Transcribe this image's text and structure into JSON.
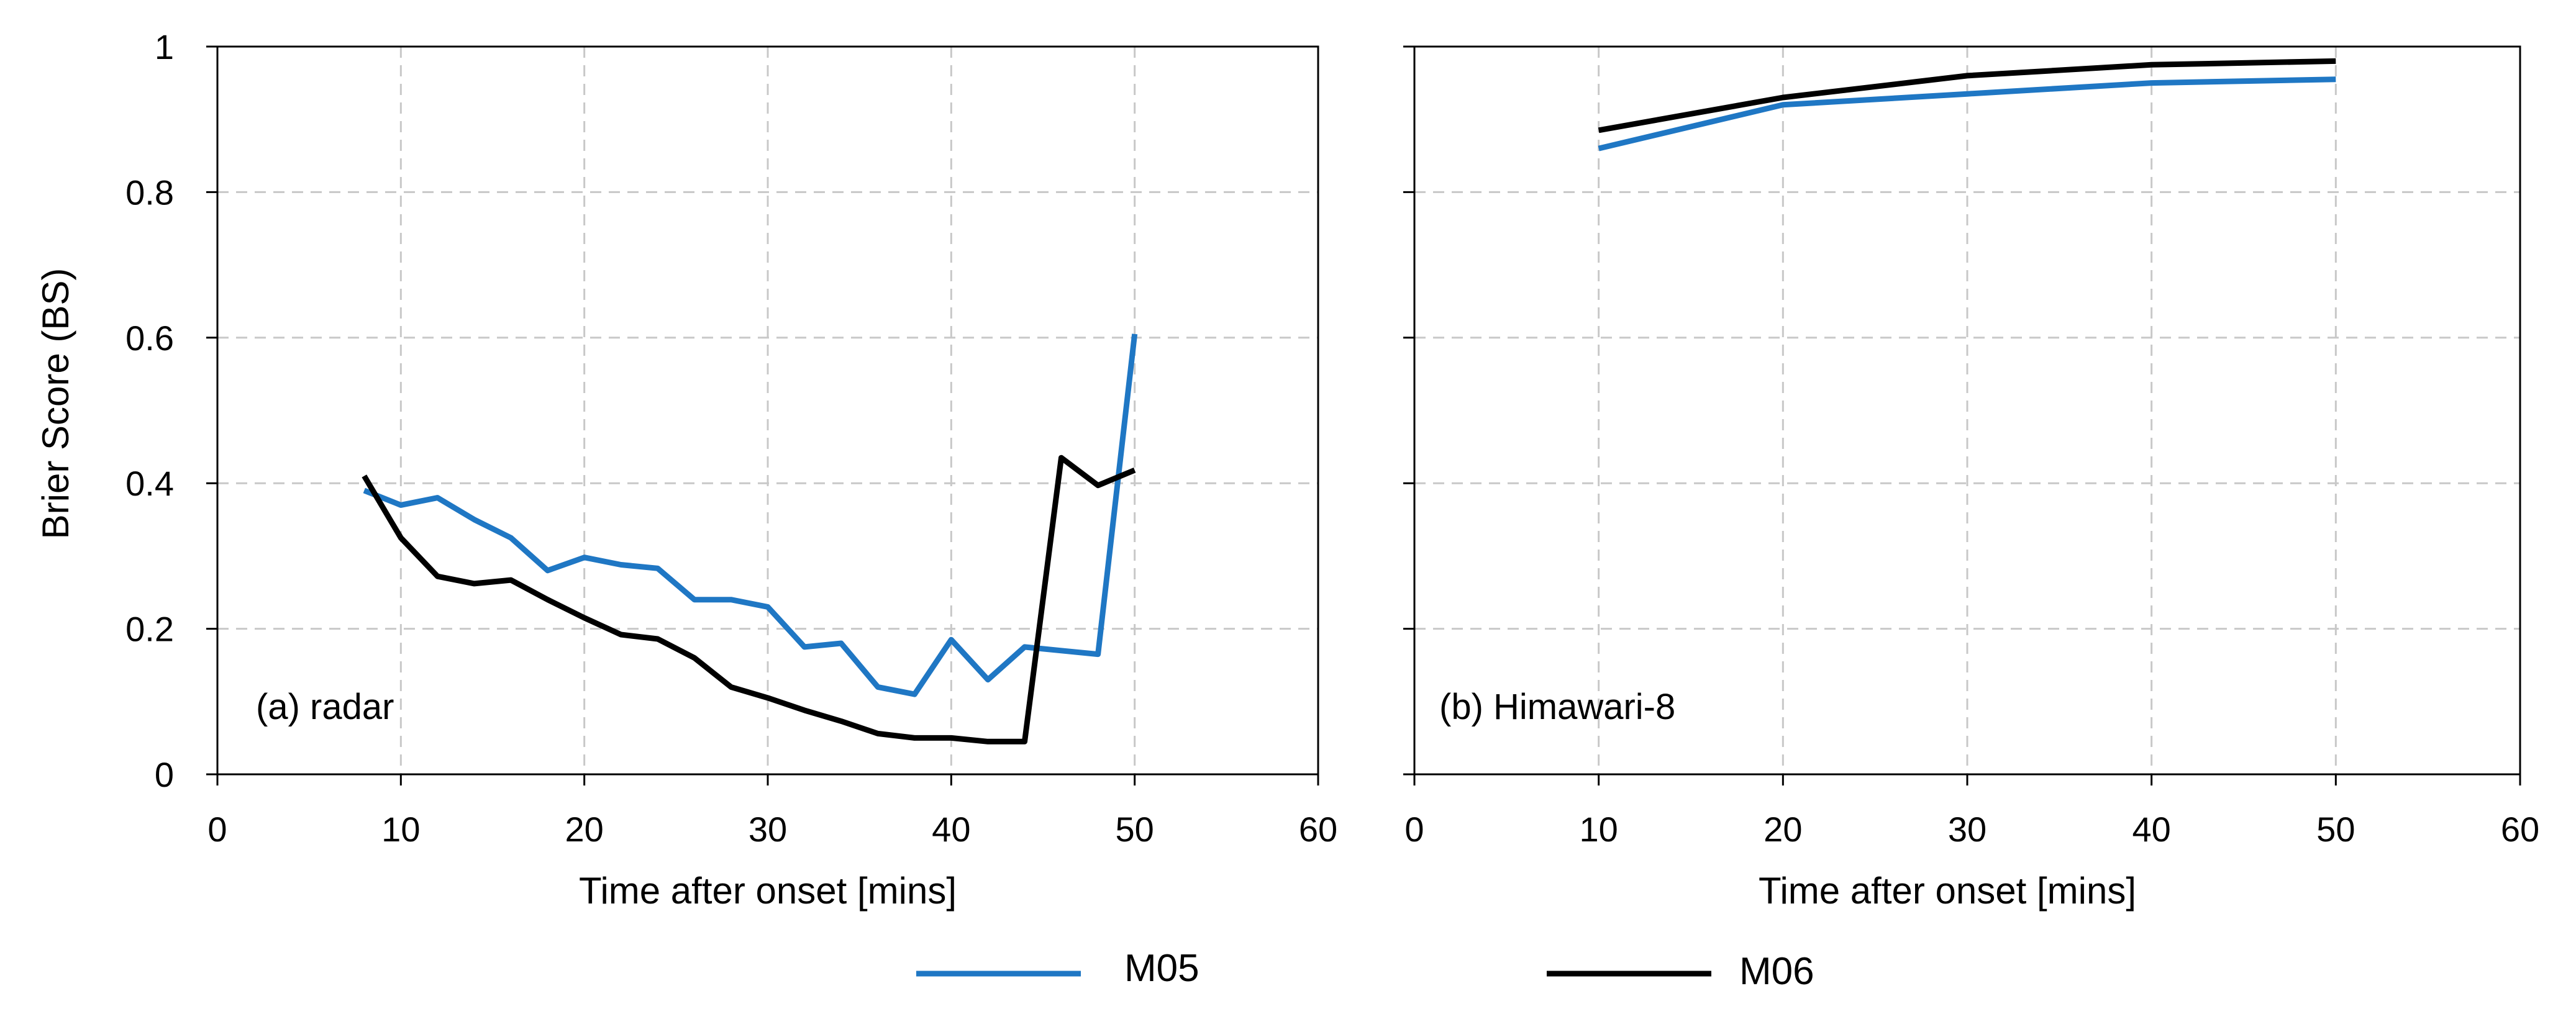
{
  "legend": [
    {
      "name": "M05",
      "color": "#1f77c4"
    },
    {
      "name": "M06",
      "color": "#000000"
    }
  ],
  "y_axis_title": "Brier Score (BS)",
  "chart_data": [
    {
      "type": "line",
      "panel_label": "(a) radar",
      "xlabel": "Time after onset [mins]",
      "ylabel": "Brier Score (BS)",
      "xlim": [
        0,
        60
      ],
      "ylim": [
        0,
        1
      ],
      "x_ticks": [
        "0",
        "10",
        "20",
        "30",
        "40",
        "50",
        "60"
      ],
      "y_ticks": [
        "0",
        "0.2",
        "0.4",
        "0.6",
        "0.8",
        "1"
      ],
      "grid": true,
      "series": [
        {
          "name": "M05",
          "color": "#1f77c4",
          "x": [
            8,
            10,
            12,
            14,
            16,
            18,
            20,
            22,
            24,
            26,
            28,
            30,
            32,
            34,
            36,
            38,
            40,
            42,
            44,
            46,
            48,
            50
          ],
          "y": [
            0.39,
            0.37,
            0.38,
            0.35,
            0.325,
            0.28,
            0.298,
            0.288,
            0.283,
            0.24,
            0.24,
            0.23,
            0.175,
            0.18,
            0.12,
            0.11,
            0.185,
            0.13,
            0.175,
            0.17,
            0.165,
            0.605
          ]
        },
        {
          "name": "M06",
          "color": "#000000",
          "x": [
            8,
            10,
            12,
            14,
            16,
            18,
            20,
            22,
            24,
            26,
            28,
            30,
            32,
            34,
            36,
            38,
            40,
            42,
            44,
            46,
            48,
            50
          ],
          "y": [
            0.41,
            0.325,
            0.272,
            0.262,
            0.267,
            0.24,
            0.215,
            0.192,
            0.186,
            0.16,
            0.12,
            0.105,
            0.088,
            0.073,
            0.056,
            0.05,
            0.05,
            0.045,
            0.045,
            0.435,
            0.397,
            0.418
          ]
        }
      ]
    },
    {
      "type": "line",
      "panel_label": "(b) Himawari-8",
      "xlabel": "Time after onset [mins]",
      "ylabel": "",
      "xlim": [
        0,
        60
      ],
      "ylim": [
        0,
        1
      ],
      "x_ticks": [
        "0",
        "10",
        "20",
        "30",
        "40",
        "50",
        "60"
      ],
      "y_ticks": [],
      "grid": true,
      "series": [
        {
          "name": "M05",
          "color": "#1f77c4",
          "x": [
            10,
            20,
            30,
            40,
            50
          ],
          "y": [
            0.86,
            0.92,
            0.935,
            0.95,
            0.955
          ]
        },
        {
          "name": "M06",
          "color": "#000000",
          "x": [
            10,
            20,
            30,
            40,
            50
          ],
          "y": [
            0.885,
            0.93,
            0.96,
            0.975,
            0.98
          ]
        }
      ]
    }
  ]
}
